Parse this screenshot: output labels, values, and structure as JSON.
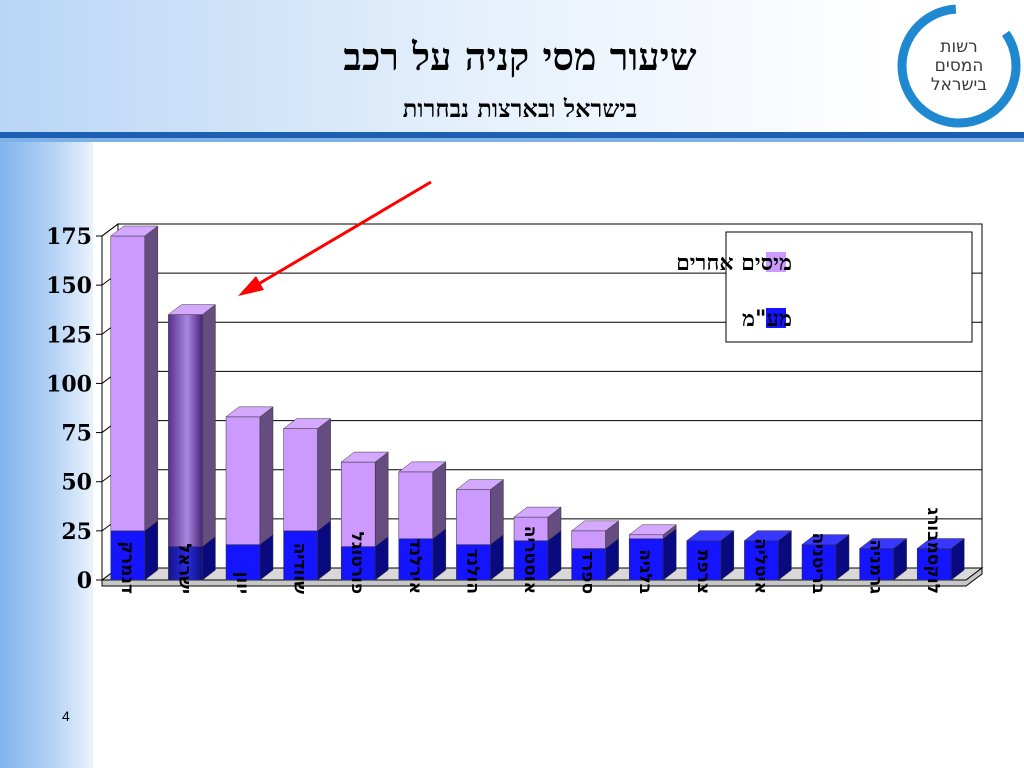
{
  "slide": {
    "title": "שיעור מסי קניה על רכב",
    "subtitle": "בישראל ובארצות נבחרות",
    "page_number": "4"
  },
  "logo": {
    "lines": [
      "רשות",
      "המסים",
      "בישראל"
    ]
  },
  "chart_data": {
    "type": "bar",
    "stacked": true,
    "categories": [
      "דנמרק",
      "ישראל",
      "יוון",
      "שוודיה",
      "פורטוגל",
      "אירלנד",
      "הולנד",
      "אוסטריה",
      "ספרד",
      "בלגיה",
      "צרפת",
      "איטליה",
      "בריטניה",
      "גרמניה",
      "לוקסמבורג"
    ],
    "series": [
      {
        "name": "מע\"מ",
        "color": "#1414ff",
        "values": [
          25,
          17,
          18,
          25,
          17,
          21,
          18,
          20,
          16,
          21,
          20,
          20,
          18,
          16,
          16
        ]
      },
      {
        "name": "מיסים אחרים",
        "color": "#cc99ff",
        "values": [
          150,
          118,
          65,
          52,
          43,
          34,
          28,
          12,
          9,
          2,
          0,
          0,
          0,
          0,
          0
        ]
      }
    ],
    "highlighted_category": "ישראל",
    "yticks": [
      0,
      25,
      50,
      75,
      100,
      125,
      150,
      175
    ],
    "ylim": [
      0,
      175
    ],
    "legend_position": "top-right",
    "grid": true,
    "annotation": "red-arrow-pointing-to-israel"
  }
}
